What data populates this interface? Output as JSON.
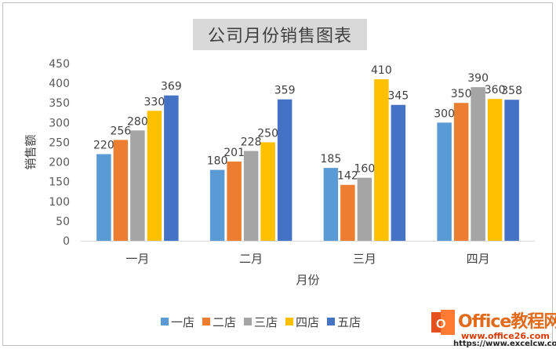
{
  "chart_data": {
    "type": "bar",
    "title": "公司月份销售图表",
    "xlabel": "月份",
    "ylabel": "销售额",
    "categories": [
      "一月",
      "二月",
      "三月",
      "四月"
    ],
    "ylim": [
      0,
      450
    ],
    "yticks": [
      0,
      50,
      100,
      150,
      200,
      250,
      300,
      350,
      400,
      450
    ],
    "grid": false,
    "legend_position": "bottom",
    "data_labels": true,
    "series": [
      {
        "name": "一店",
        "color": "#5b9bd5",
        "values": [
          220,
          180,
          185,
          300
        ]
      },
      {
        "name": "二店",
        "color": "#ed7d31",
        "values": [
          256,
          201,
          142,
          350
        ]
      },
      {
        "name": "三店",
        "color": "#a5a5a5",
        "values": [
          280,
          228,
          160,
          390
        ]
      },
      {
        "name": "四店",
        "color": "#ffc000",
        "values": [
          330,
          250,
          410,
          360
        ]
      },
      {
        "name": "五店",
        "color": "#4472c4",
        "values": [
          369,
          359,
          345,
          358
        ]
      }
    ]
  },
  "watermark": {
    "title": "Office教程网",
    "url": "www.office26.com",
    "url2": "https://www.excelcw.com"
  }
}
